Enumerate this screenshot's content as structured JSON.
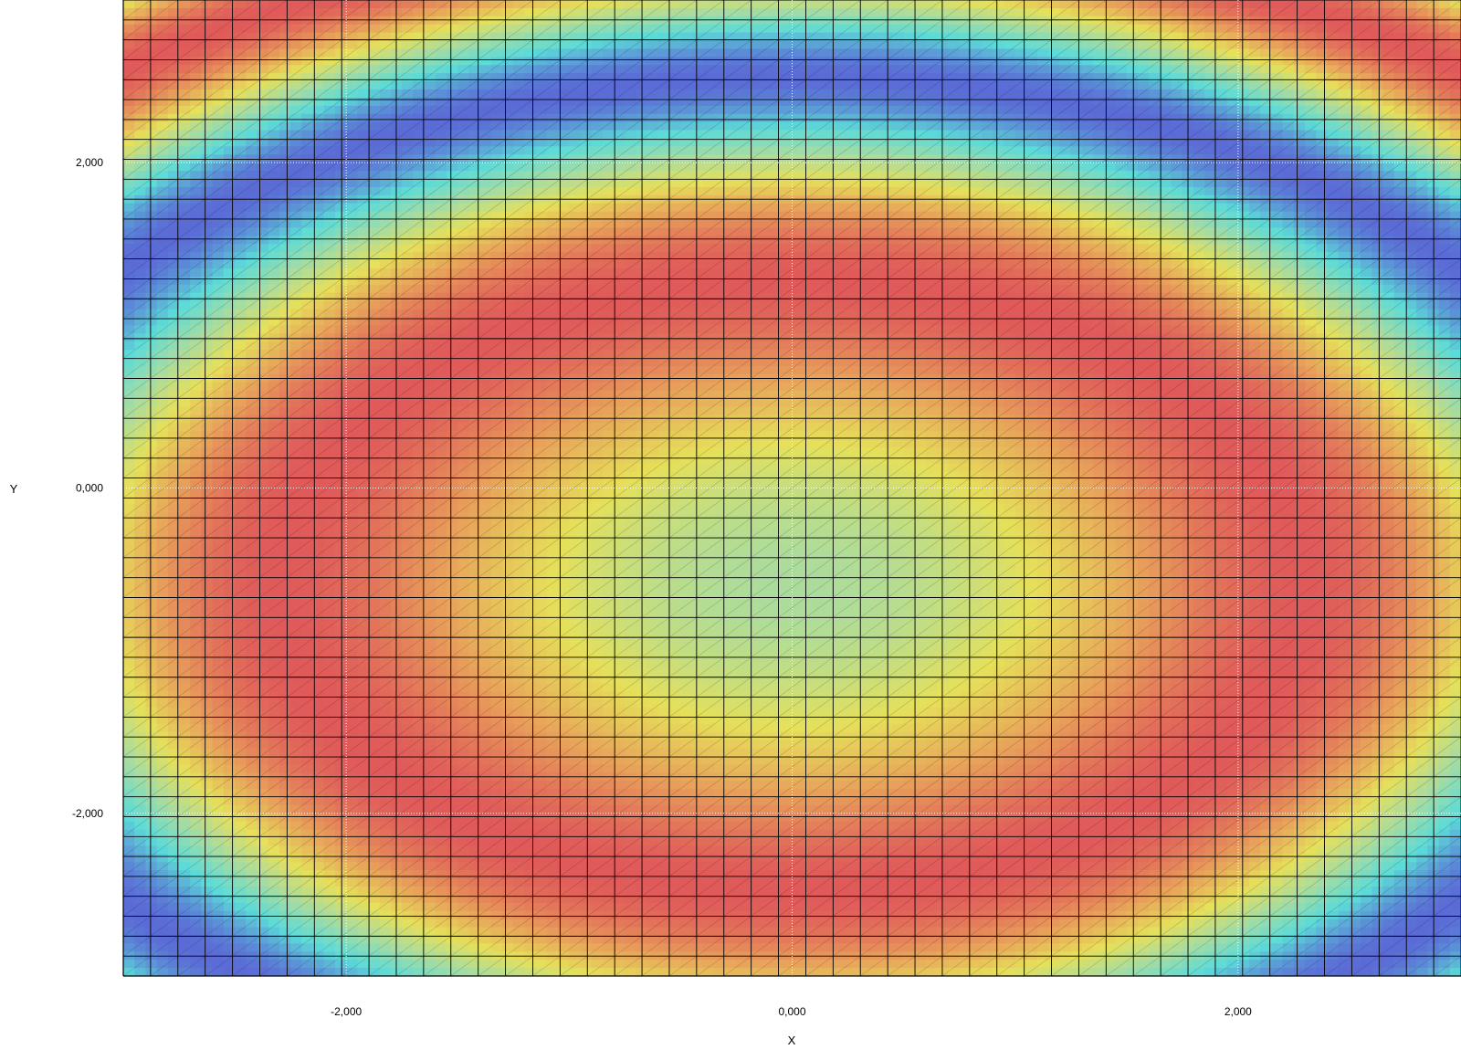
{
  "chart_data": {
    "type": "heatmap",
    "title": "",
    "xlabel": "X",
    "ylabel": "Y",
    "xlim": [
      -3.0,
      3.0
    ],
    "ylim": [
      -3.0,
      3.0
    ],
    "x_ticks": [
      {
        "value": -2.0,
        "label": "-2,000"
      },
      {
        "value": 0.0,
        "label": "0,000"
      },
      {
        "value": 2.0,
        "label": "2,000"
      }
    ],
    "y_ticks": [
      {
        "value": 2.0,
        "label": "2,000"
      },
      {
        "value": 0.0,
        "label": "0,000"
      },
      {
        "value": -2.0,
        "label": "-2,000"
      }
    ],
    "grid": true,
    "mesh_divisions": {
      "x": 49,
      "y": 49
    },
    "surface_function": "sin(x*x/3 + y*y/2) style surface, symmetric in x, periodic bands",
    "colormap": [
      "#5b6bd6",
      "#5cdbd8",
      "#a8dca0",
      "#e6e05a",
      "#e8a05a",
      "#e05a5a"
    ],
    "value_range": [
      -1.0,
      1.0
    ]
  }
}
